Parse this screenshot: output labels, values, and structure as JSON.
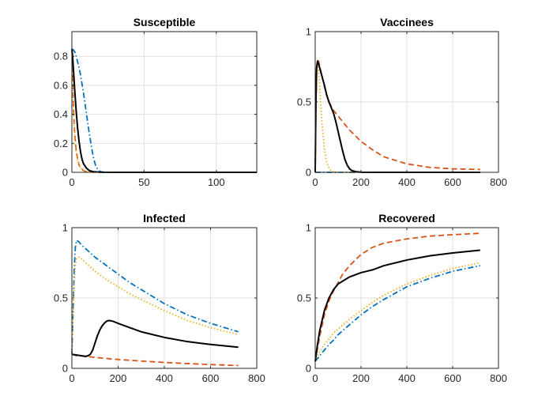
{
  "chart_data": [
    {
      "type": "line",
      "title": "Susceptible",
      "xlim": [
        0,
        128
      ],
      "ylim": [
        0,
        0.97
      ],
      "xticks": [
        0,
        50,
        100
      ],
      "yticks": [
        0,
        0.2,
        0.4,
        0.6,
        0.8
      ],
      "xtick_labels": [
        "0",
        "50",
        "100"
      ],
      "ytick_labels": [
        "0",
        "0.2",
        "0.4",
        "0.6",
        "0.8"
      ],
      "grid": true,
      "series": [
        {
          "name": "dash-dot",
          "color": "#0072BD",
          "dash": "dashdot",
          "x": [
            0,
            1,
            2,
            3,
            4,
            5,
            6,
            7,
            8,
            9,
            10,
            11,
            12,
            13,
            14,
            15,
            16,
            17,
            18,
            19,
            20,
            22,
            25,
            30,
            40,
            60,
            128
          ],
          "y": [
            0.85,
            0.845,
            0.83,
            0.8,
            0.76,
            0.72,
            0.67,
            0.61,
            0.55,
            0.48,
            0.41,
            0.34,
            0.27,
            0.21,
            0.15,
            0.1,
            0.06,
            0.035,
            0.02,
            0.01,
            0.005,
            0.002,
            0.001,
            0,
            0,
            0,
            0
          ]
        },
        {
          "name": "dashed",
          "color": "#D95319",
          "dash": "dashed",
          "x": [
            0,
            0.5,
            1,
            1.5,
            2,
            3,
            4,
            5,
            6,
            8,
            10,
            15,
            20,
            30,
            128
          ],
          "y": [
            0.85,
            0.65,
            0.47,
            0.35,
            0.26,
            0.15,
            0.09,
            0.05,
            0.03,
            0.012,
            0.005,
            0.001,
            0,
            0,
            0
          ]
        },
        {
          "name": "dotted",
          "color": "#EDB120",
          "dash": "dotted",
          "x": [
            0,
            0.5,
            1,
            1.5,
            2,
            3,
            4,
            5,
            6,
            8,
            10,
            15,
            20,
            30,
            128
          ],
          "y": [
            0.85,
            0.62,
            0.45,
            0.33,
            0.24,
            0.14,
            0.08,
            0.05,
            0.03,
            0.012,
            0.005,
            0.001,
            0,
            0,
            0
          ]
        },
        {
          "name": "solid",
          "color": "#000000",
          "dash": "solid",
          "x": [
            0,
            0.5,
            1,
            2,
            3,
            4,
            5,
            6,
            7,
            8,
            10,
            12,
            15,
            20,
            30,
            128
          ],
          "y": [
            0.85,
            0.8,
            0.72,
            0.56,
            0.42,
            0.3,
            0.21,
            0.14,
            0.09,
            0.06,
            0.03,
            0.012,
            0.004,
            0.001,
            0,
            0
          ]
        }
      ]
    },
    {
      "type": "line",
      "title": "Vaccinees",
      "xlim": [
        0,
        800
      ],
      "ylim": [
        0,
        1
      ],
      "xticks": [
        0,
        200,
        400,
        600,
        800
      ],
      "yticks": [
        0,
        0.5,
        1
      ],
      "xtick_labels": [
        "0",
        "200",
        "400",
        "600",
        "800"
      ],
      "ytick_labels": [
        "0",
        "0.5",
        "1"
      ],
      "grid": true,
      "series": [
        {
          "name": "dash-dot",
          "color": "#0072BD",
          "dash": "dashdot",
          "x": [
            0,
            720
          ],
          "y": [
            0,
            0
          ]
        },
        {
          "name": "dashed",
          "color": "#D95319",
          "dash": "dashed",
          "x": [
            0,
            3,
            6,
            10,
            15,
            20,
            30,
            40,
            50,
            60,
            70,
            80,
            90,
            100,
            120,
            150,
            200,
            250,
            300,
            400,
            500,
            600,
            720
          ],
          "y": [
            0,
            0.45,
            0.72,
            0.8,
            0.79,
            0.75,
            0.68,
            0.61,
            0.55,
            0.5,
            0.47,
            0.44,
            0.42,
            0.4,
            0.36,
            0.3,
            0.22,
            0.16,
            0.11,
            0.06,
            0.035,
            0.025,
            0.02
          ]
        },
        {
          "name": "dotted",
          "color": "#EDB120",
          "dash": "dotted",
          "x": [
            0,
            3,
            6,
            10,
            15,
            20,
            25,
            30,
            40,
            50,
            60,
            70,
            80,
            90,
            100,
            120,
            150,
            200,
            720
          ],
          "y": [
            0,
            0.45,
            0.7,
            0.78,
            0.72,
            0.6,
            0.47,
            0.34,
            0.17,
            0.07,
            0.03,
            0.012,
            0.005,
            0.002,
            0.001,
            0,
            0,
            0,
            0
          ]
        },
        {
          "name": "solid",
          "color": "#000000",
          "dash": "solid",
          "x": [
            0,
            3,
            6,
            10,
            15,
            20,
            30,
            40,
            50,
            60,
            70,
            80,
            90,
            100,
            110,
            120,
            130,
            140,
            150,
            160,
            180,
            200,
            250,
            720
          ],
          "y": [
            0,
            0.5,
            0.74,
            0.79,
            0.77,
            0.74,
            0.68,
            0.62,
            0.55,
            0.5,
            0.46,
            0.42,
            0.36,
            0.29,
            0.22,
            0.15,
            0.09,
            0.05,
            0.025,
            0.012,
            0.004,
            0.001,
            0,
            0
          ]
        }
      ]
    },
    {
      "type": "line",
      "title": "Infected",
      "xlim": [
        0,
        800
      ],
      "ylim": [
        0,
        1
      ],
      "xticks": [
        0,
        200,
        400,
        600,
        800
      ],
      "yticks": [
        0,
        0.5,
        1
      ],
      "xtick_labels": [
        "0",
        "200",
        "400",
        "600",
        "800"
      ],
      "ytick_labels": [
        "0",
        "0.5",
        "1"
      ],
      "grid": true,
      "series": [
        {
          "name": "dash-dot",
          "color": "#0072BD",
          "dash": "dashdot",
          "x": [
            0,
            5,
            10,
            15,
            20,
            30,
            40,
            60,
            80,
            100,
            150,
            200,
            250,
            300,
            400,
            500,
            600,
            720
          ],
          "y": [
            0.1,
            0.4,
            0.7,
            0.86,
            0.91,
            0.9,
            0.88,
            0.85,
            0.82,
            0.79,
            0.73,
            0.67,
            0.61,
            0.56,
            0.46,
            0.38,
            0.32,
            0.26
          ]
        },
        {
          "name": "dashed",
          "color": "#D95319",
          "dash": "dashed",
          "x": [
            0,
            20,
            40,
            60,
            80,
            100,
            150,
            200,
            300,
            400,
            500,
            600,
            720
          ],
          "y": [
            0.1,
            0.09,
            0.088,
            0.085,
            0.082,
            0.078,
            0.07,
            0.063,
            0.052,
            0.042,
            0.034,
            0.027,
            0.02
          ]
        },
        {
          "name": "dotted",
          "color": "#EDB120",
          "dash": "dotted",
          "x": [
            0,
            5,
            10,
            15,
            20,
            30,
            40,
            60,
            80,
            100,
            150,
            200,
            250,
            300,
            400,
            500,
            600,
            720
          ],
          "y": [
            0.1,
            0.35,
            0.6,
            0.74,
            0.78,
            0.79,
            0.78,
            0.75,
            0.72,
            0.69,
            0.63,
            0.58,
            0.53,
            0.49,
            0.41,
            0.34,
            0.29,
            0.24
          ]
        },
        {
          "name": "solid",
          "color": "#000000",
          "dash": "solid",
          "x": [
            0,
            20,
            40,
            60,
            70,
            80,
            90,
            100,
            110,
            120,
            130,
            140,
            150,
            160,
            170,
            180,
            200,
            250,
            300,
            400,
            500,
            600,
            720
          ],
          "y": [
            0.1,
            0.095,
            0.09,
            0.085,
            0.09,
            0.1,
            0.13,
            0.18,
            0.23,
            0.27,
            0.3,
            0.32,
            0.335,
            0.34,
            0.338,
            0.333,
            0.32,
            0.29,
            0.26,
            0.22,
            0.19,
            0.17,
            0.15
          ]
        }
      ]
    },
    {
      "type": "line",
      "title": "Recovered",
      "xlim": [
        0,
        800
      ],
      "ylim": [
        0,
        1
      ],
      "xticks": [
        0,
        200,
        400,
        600,
        800
      ],
      "yticks": [
        0,
        0.5,
        1
      ],
      "xtick_labels": [
        "0",
        "200",
        "400",
        "600",
        "800"
      ],
      "ytick_labels": [
        "0",
        "0.5",
        "1"
      ],
      "grid": true,
      "series": [
        {
          "name": "dash-dot",
          "color": "#0072BD",
          "dash": "dashdot",
          "x": [
            0,
            10,
            20,
            40,
            60,
            80,
            100,
            150,
            200,
            250,
            300,
            400,
            500,
            600,
            720
          ],
          "y": [
            0.05,
            0.07,
            0.09,
            0.13,
            0.17,
            0.2,
            0.24,
            0.31,
            0.38,
            0.44,
            0.49,
            0.58,
            0.64,
            0.69,
            0.73
          ]
        },
        {
          "name": "dashed",
          "color": "#D95319",
          "dash": "dashed",
          "x": [
            0,
            10,
            20,
            40,
            60,
            80,
            100,
            120,
            150,
            200,
            250,
            300,
            400,
            500,
            600,
            720
          ],
          "y": [
            0.05,
            0.14,
            0.23,
            0.38,
            0.48,
            0.55,
            0.61,
            0.67,
            0.73,
            0.81,
            0.86,
            0.89,
            0.92,
            0.94,
            0.95,
            0.96
          ]
        },
        {
          "name": "dotted",
          "color": "#EDB120",
          "dash": "dotted",
          "x": [
            0,
            10,
            20,
            40,
            60,
            80,
            100,
            150,
            200,
            250,
            300,
            400,
            500,
            600,
            720
          ],
          "y": [
            0.05,
            0.09,
            0.12,
            0.17,
            0.21,
            0.25,
            0.28,
            0.35,
            0.41,
            0.47,
            0.52,
            0.6,
            0.66,
            0.71,
            0.75
          ]
        },
        {
          "name": "solid",
          "color": "#000000",
          "dash": "solid",
          "x": [
            0,
            10,
            20,
            40,
            60,
            80,
            100,
            120,
            150,
            200,
            250,
            300,
            400,
            500,
            600,
            720
          ],
          "y": [
            0.05,
            0.17,
            0.27,
            0.41,
            0.5,
            0.56,
            0.6,
            0.62,
            0.65,
            0.68,
            0.7,
            0.73,
            0.77,
            0.8,
            0.82,
            0.84
          ]
        }
      ]
    }
  ]
}
